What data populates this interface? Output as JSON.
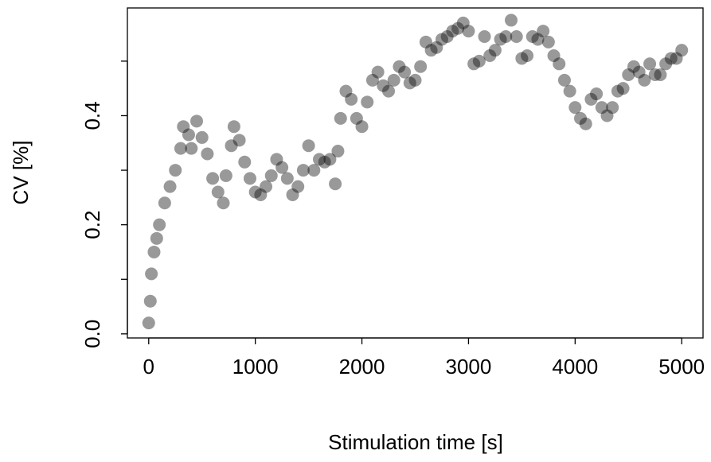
{
  "chart_data": {
    "type": "scatter",
    "xlabel": "Stimulation time [s]",
    "ylabel": "CV [%]",
    "xlim": [
      -200,
      5200
    ],
    "ylim": [
      -0.0075,
      0.5975
    ],
    "xticks": [
      0,
      1000,
      2000,
      3000,
      4000,
      5000
    ],
    "yticks": [
      {
        "value": 0,
        "label": "0.0"
      },
      0.2,
      0.4
    ],
    "yminor_ticks": [
      0.1,
      0.3,
      0.5
    ],
    "series": [
      {
        "color": "#000000",
        "x": [
          0,
          15,
          25,
          50,
          75,
          100,
          150,
          200,
          250,
          300,
          325,
          375,
          400,
          450,
          500,
          550,
          600,
          650,
          700,
          725,
          775,
          800,
          850,
          900,
          950,
          1000,
          1050,
          1100,
          1150,
          1200,
          1250,
          1300,
          1350,
          1400,
          1450,
          1500,
          1550,
          1600,
          1650,
          1700,
          1750,
          1775,
          1800,
          1850,
          1900,
          1950,
          2000,
          2050,
          2100,
          2150,
          2200,
          2250,
          2300,
          2350,
          2400,
          2450,
          2500,
          2550,
          2600,
          2650,
          2700,
          2750,
          2800,
          2850,
          2900,
          2950,
          3000,
          3050,
          3100,
          3150,
          3200,
          3250,
          3300,
          3350,
          3400,
          3450,
          3500,
          3550,
          3600,
          3650,
          3700,
          3750,
          3800,
          3850,
          3900,
          3950,
          4000,
          4050,
          4100,
          4150,
          4200,
          4250,
          4300,
          4350,
          4400,
          4450,
          4500,
          4550,
          4600,
          4650,
          4700,
          4750,
          4800,
          4850,
          4900,
          4950,
          5000
        ],
        "values": [
          0.02,
          0.06,
          0.11,
          0.15,
          0.175,
          0.2,
          0.24,
          0.27,
          0.3,
          0.34,
          0.38,
          0.365,
          0.34,
          0.39,
          0.36,
          0.33,
          0.285,
          0.26,
          0.24,
          0.29,
          0.345,
          0.38,
          0.355,
          0.315,
          0.285,
          0.26,
          0.255,
          0.27,
          0.29,
          0.32,
          0.305,
          0.285,
          0.255,
          0.27,
          0.3,
          0.345,
          0.3,
          0.32,
          0.315,
          0.32,
          0.275,
          0.335,
          0.395,
          0.445,
          0.43,
          0.395,
          0.38,
          0.425,
          0.465,
          0.48,
          0.455,
          0.445,
          0.465,
          0.49,
          0.48,
          0.46,
          0.465,
          0.49,
          0.535,
          0.52,
          0.525,
          0.54,
          0.545,
          0.555,
          0.56,
          0.57,
          0.555,
          0.495,
          0.5,
          0.545,
          0.51,
          0.52,
          0.54,
          0.545,
          0.575,
          0.545,
          0.505,
          0.51,
          0.545,
          0.54,
          0.555,
          0.535,
          0.51,
          0.495,
          0.465,
          0.445,
          0.415,
          0.395,
          0.385,
          0.43,
          0.44,
          0.415,
          0.4,
          0.415,
          0.445,
          0.45,
          0.475,
          0.49,
          0.48,
          0.465,
          0.495,
          0.475,
          0.475,
          0.495,
          0.505,
          0.505,
          0.52
        ]
      }
    ]
  }
}
